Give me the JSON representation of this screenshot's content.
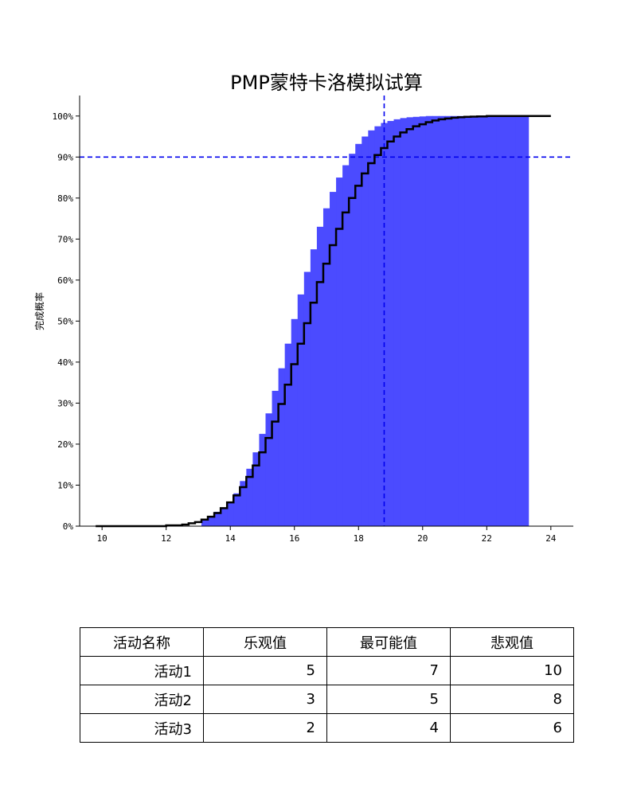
{
  "chart_data": {
    "type": "histogram",
    "title": "PMP蒙特卡洛模拟试算",
    "xlabel": "",
    "ylabel": "完成概率",
    "xlim": [
      9.3,
      24.7
    ],
    "ylim": [
      0,
      105
    ],
    "x_ticks": [
      "10",
      "12",
      "14",
      "16",
      "18",
      "20",
      "22",
      "24"
    ],
    "y_ticks": [
      "0%",
      "10%",
      "20%",
      "30%",
      "40%",
      "50%",
      "60%",
      "70%",
      "80%",
      "90%",
      "100%"
    ],
    "bar_color": "#4b4bff",
    "line_color": "#000000",
    "ref_color": "#0000ee",
    "ref_x": 18.8,
    "ref_y": 90,
    "histogram_bin_width": 0.2,
    "histogram_bin_starts": [
      13.1,
      13.3,
      13.5,
      13.7,
      13.9,
      14.1,
      14.3,
      14.5,
      14.7,
      14.9,
      15.1,
      15.3,
      15.5,
      15.7,
      15.9,
      16.1,
      16.3,
      16.5,
      16.7,
      16.9,
      17.1,
      17.3,
      17.5,
      17.7,
      17.9,
      18.1,
      18.3,
      18.5,
      18.7,
      18.9,
      19.1,
      19.3,
      19.5,
      19.7,
      19.9,
      20.1,
      20.3,
      20.5,
      20.7,
      20.9,
      21.1,
      21.3,
      21.5,
      21.7,
      21.9,
      22.1,
      22.3,
      22.5,
      22.7,
      22.9,
      23.1
    ],
    "histogram_cum_percent": [
      1.5,
      2.5,
      3.5,
      4.5,
      6.0,
      8.0,
      11.0,
      14.0,
      18.0,
      22.5,
      27.5,
      33.0,
      38.5,
      44.5,
      50.5,
      56.5,
      62.0,
      67.5,
      73.0,
      77.5,
      81.5,
      85.0,
      88.0,
      90.8,
      93.2,
      95.0,
      96.5,
      97.5,
      98.3,
      98.8,
      99.2,
      99.5,
      99.7,
      99.8,
      99.9,
      100.0,
      100.0,
      100.0,
      100.0,
      100.0,
      100.0,
      100.0,
      100.0,
      100.0,
      100.0,
      100.0,
      100.0,
      100.0,
      100.0,
      100.0,
      100.0
    ],
    "histogram_x_end": 23.3,
    "cdf_x": [
      9.8,
      11.0,
      12.0,
      12.5,
      12.7,
      12.9,
      13.1,
      13.3,
      13.5,
      13.7,
      13.9,
      14.1,
      14.3,
      14.5,
      14.7,
      14.9,
      15.1,
      15.3,
      15.5,
      15.7,
      15.9,
      16.1,
      16.3,
      16.5,
      16.7,
      16.9,
      17.1,
      17.3,
      17.5,
      17.7,
      17.9,
      18.1,
      18.3,
      18.5,
      18.7,
      18.9,
      19.1,
      19.3,
      19.5,
      19.7,
      19.9,
      20.1,
      20.3,
      20.5,
      20.7,
      20.9,
      21.1,
      21.3,
      21.5,
      21.7,
      22.0,
      22.5,
      23.0,
      24.0
    ],
    "cdf_percent": [
      0.0,
      0.0,
      0.2,
      0.4,
      0.7,
      1.0,
      1.6,
      2.3,
      3.2,
      4.4,
      5.8,
      7.5,
      9.5,
      12.0,
      14.8,
      18.0,
      21.5,
      25.5,
      29.8,
      34.5,
      39.5,
      44.5,
      49.5,
      54.5,
      59.5,
      64.0,
      68.5,
      72.5,
      76.5,
      80.0,
      83.0,
      86.0,
      88.5,
      90.5,
      92.2,
      93.8,
      95.0,
      96.0,
      96.8,
      97.5,
      98.0,
      98.5,
      98.9,
      99.2,
      99.4,
      99.6,
      99.7,
      99.8,
      99.85,
      99.9,
      100.0,
      100.0,
      100.0,
      100.0
    ]
  },
  "table": {
    "headers": [
      "活动名称",
      "乐观值",
      "最可能值",
      "悲观值"
    ],
    "rows": [
      [
        "活动1",
        "5",
        "7",
        "10"
      ],
      [
        "活动2",
        "3",
        "5",
        "8"
      ],
      [
        "活动3",
        "2",
        "4",
        "6"
      ]
    ]
  }
}
